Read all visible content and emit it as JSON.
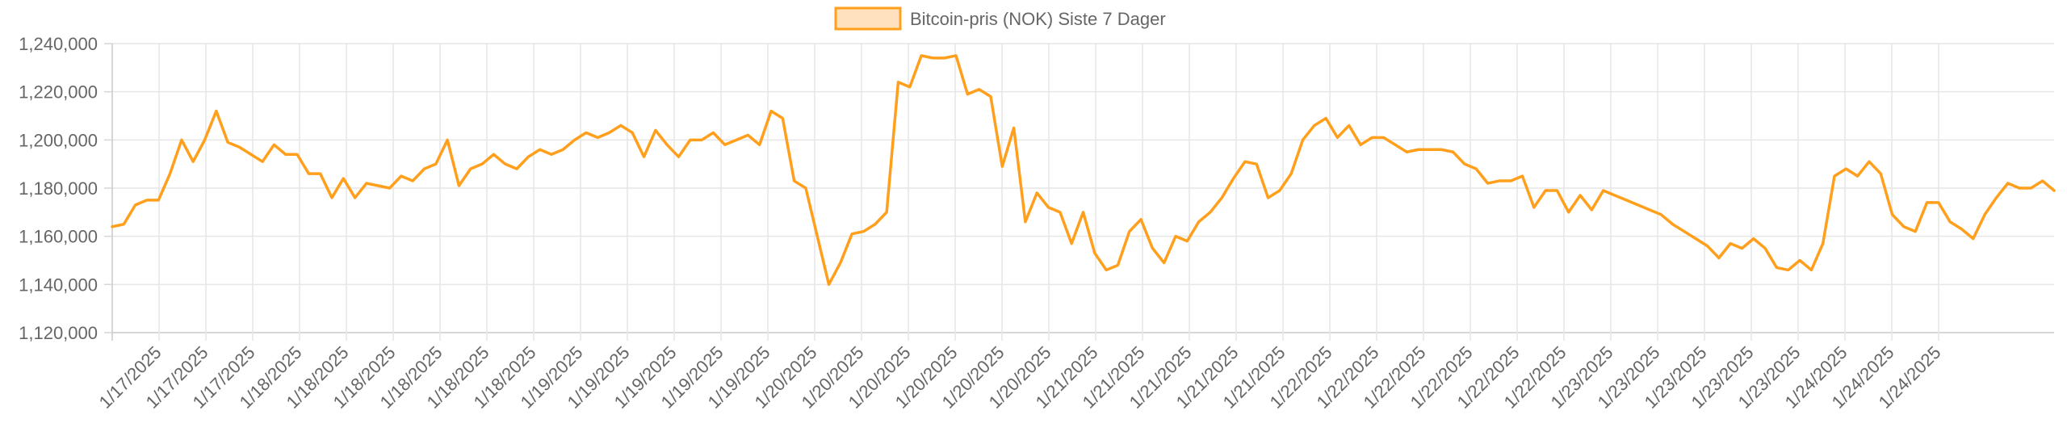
{
  "chart_data": {
    "type": "line",
    "title": "",
    "xlabel": "",
    "ylabel": "",
    "legend": {
      "position": "top-center"
    },
    "grid": true,
    "ylim": [
      1120000,
      1240000
    ],
    "y_ticks": [
      "1,120,000",
      "1,140,000",
      "1,160,000",
      "1,180,000",
      "1,200,000",
      "1,220,000",
      "1,240,000"
    ],
    "x_tick_labels": [
      "1/17/2025",
      "1/17/2025",
      "1/17/2025",
      "1/18/2025",
      "1/18/2025",
      "1/18/2025",
      "1/18/2025",
      "1/18/2025",
      "1/18/2025",
      "1/19/2025",
      "1/19/2025",
      "1/19/2025",
      "1/19/2025",
      "1/19/2025",
      "1/20/2025",
      "1/20/2025",
      "1/20/2025",
      "1/20/2025",
      "1/20/2025",
      "1/20/2025",
      "1/21/2025",
      "1/21/2025",
      "1/21/2025",
      "1/21/2025",
      "1/21/2025",
      "1/22/2025",
      "1/22/2025",
      "1/22/2025",
      "1/22/2025",
      "1/22/2025",
      "1/22/2025",
      "1/23/2025",
      "1/23/2025",
      "1/23/2025",
      "1/23/2025",
      "1/23/2025",
      "1/24/2025",
      "1/24/2025",
      "1/24/2025"
    ],
    "series": [
      {
        "name": "Bitcoin-pris (NOK) Siste 7 Dager",
        "color": "#ff9f1c",
        "fill": "#ffe2bd",
        "values": [
          1164000,
          1165000,
          1173000,
          1175000,
          1175000,
          1186000,
          1200000,
          1191000,
          1200000,
          1212000,
          1199000,
          1197000,
          1194000,
          1191000,
          1198000,
          1194000,
          1194000,
          1186000,
          1186000,
          1176000,
          1184000,
          1176000,
          1182000,
          1181000,
          1180000,
          1185000,
          1183000,
          1188000,
          1190000,
          1200000,
          1181000,
          1188000,
          1190000,
          1194000,
          1190000,
          1188000,
          1193000,
          1196000,
          1194000,
          1196000,
          1200000,
          1203000,
          1201000,
          1203000,
          1206000,
          1203000,
          1193000,
          1204000,
          1198000,
          1193000,
          1200000,
          1200000,
          1203000,
          1198000,
          1200000,
          1202000,
          1198000,
          1212000,
          1209000,
          1183000,
          1180000,
          1160000,
          1140000,
          1149000,
          1161000,
          1162000,
          1165000,
          1170000,
          1224000,
          1222000,
          1235000,
          1234000,
          1234000,
          1235000,
          1219000,
          1221000,
          1218000,
          1189000,
          1205000,
          1166000,
          1178000,
          1172000,
          1170000,
          1157000,
          1170000,
          1153000,
          1146000,
          1148000,
          1162000,
          1167000,
          1155000,
          1149000,
          1160000,
          1158000,
          1166000,
          1170000,
          1176000,
          1184000,
          1191000,
          1190000,
          1176000,
          1179000,
          1186000,
          1200000,
          1206000,
          1209000,
          1201000,
          1206000,
          1198000,
          1201000,
          1201000,
          1198000,
          1195000,
          1196000,
          1196000,
          1196000,
          1195000,
          1190000,
          1188000,
          1182000,
          1183000,
          1183000,
          1185000,
          1172000,
          1179000,
          1179000,
          1170000,
          1177000,
          1171000,
          1179000,
          1177000,
          1175000,
          1173000,
          1171000,
          1169000,
          1165000,
          1162000,
          1159000,
          1156000,
          1151000,
          1157000,
          1155000,
          1159000,
          1155000,
          1147000,
          1146000,
          1150000,
          1146000,
          1157000,
          1185000,
          1188000,
          1185000,
          1191000,
          1186000,
          1169000,
          1164000,
          1162000,
          1174000,
          1174000,
          1166000,
          1163000,
          1159000,
          1169000,
          1176000,
          1182000,
          1180000,
          1180000,
          1183000,
          1179000
        ]
      }
    ]
  }
}
